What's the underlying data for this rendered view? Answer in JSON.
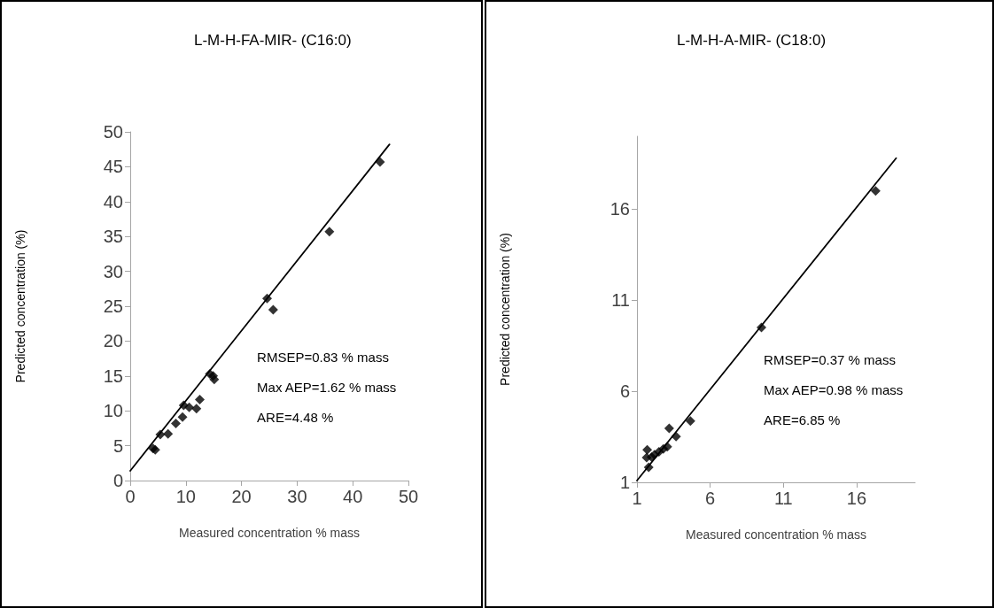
{
  "chart_data": [
    {
      "type": "scatter",
      "title": "L-M-H-FA-MIR- (C16:0)",
      "xlabel": "Measured concentration % mass",
      "ylabel": "Predicted concentration (%)",
      "xlim": [
        0,
        50
      ],
      "ylim": [
        0,
        50
      ],
      "xticks": [
        0,
        10,
        20,
        30,
        40,
        50
      ],
      "yticks": [
        0,
        5,
        10,
        15,
        20,
        25,
        30,
        35,
        40,
        45,
        50
      ],
      "grid": false,
      "line_style": "solid",
      "annotations": [
        "RMSEP=0.83 % mass",
        "Max AEP=1.62 % mass",
        "ARE=4.48 %"
      ],
      "series": [
        {
          "marker": "diamond",
          "color": "#000000",
          "x": [
            44.9,
            35.8,
            24.6,
            25.7,
            14.3,
            14.9,
            15.1,
            12.5,
            11.9,
            10.6,
            9.6,
            9.4,
            8.2,
            6.8,
            5.4,
            4.5,
            4.1
          ],
          "values": [
            45.7,
            35.7,
            26.1,
            24.5,
            15.3,
            15.0,
            14.5,
            11.6,
            10.3,
            10.5,
            10.8,
            9.1,
            8.2,
            6.7,
            6.6,
            4.4,
            4.6
          ]
        },
        {
          "type": "line",
          "marker": "none",
          "color": "#000000",
          "x": [
            0,
            46.6
          ],
          "values": [
            1.4,
            48.2
          ]
        }
      ]
    },
    {
      "type": "scatter",
      "title": "L-M-H-A-MIR- (C18:0)",
      "xlabel": "Measured concentration % mass",
      "ylabel": "Predicted concentration (%)",
      "xlim": [
        1,
        20
      ],
      "ylim": [
        1,
        20
      ],
      "xticks": [
        1,
        6,
        11,
        16
      ],
      "yticks": [
        1,
        6,
        11,
        16
      ],
      "grid": false,
      "line_style": "solid",
      "annotations": [
        "RMSEP=0.37 % mass",
        "Max AEP=0.98 % mass",
        "ARE=6.85 %"
      ],
      "series": [
        {
          "marker": "diamond",
          "color": "#000000",
          "x": [
            17.3,
            9.5,
            4.65,
            3.2,
            3.67,
            3.07,
            2.8,
            2.5,
            2.2,
            2.0,
            1.7,
            1.66,
            1.8
          ],
          "values": [
            17.0,
            9.5,
            4.36,
            3.96,
            3.51,
            2.95,
            2.84,
            2.68,
            2.52,
            2.39,
            2.79,
            2.36,
            1.83
          ]
        },
        {
          "type": "line",
          "marker": "none",
          "color": "#000000",
          "x": [
            1,
            18.7
          ],
          "values": [
            1.1,
            18.8
          ]
        }
      ]
    }
  ]
}
